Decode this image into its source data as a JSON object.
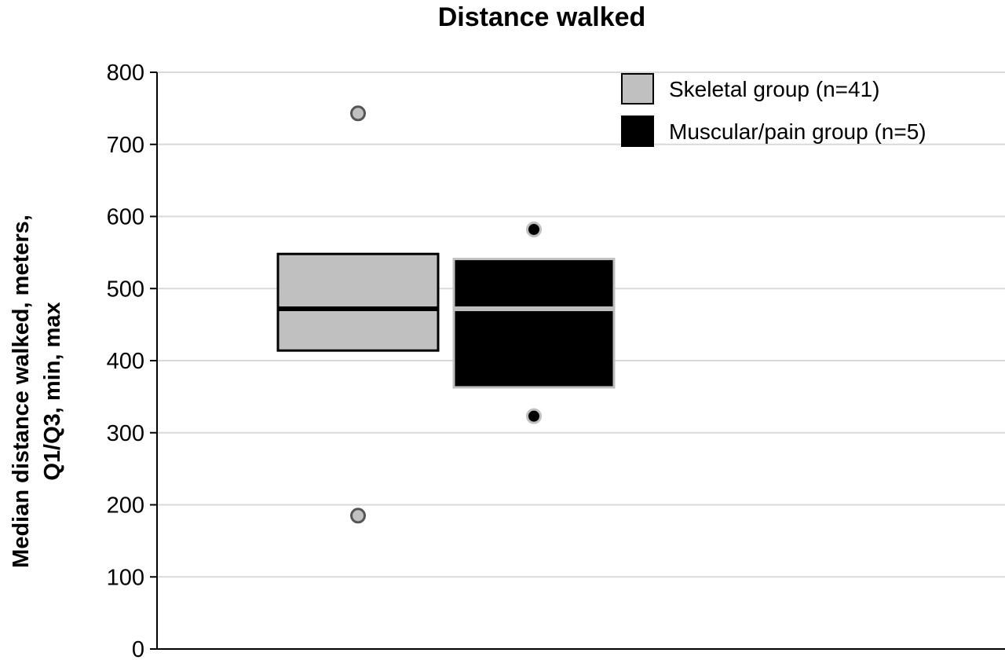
{
  "chart_data": {
    "type": "box",
    "title": "Distance walked",
    "ylabel_lines": [
      "Median distance walked, meters,",
      "Q1/Q3, min, max"
    ],
    "xlabel": "",
    "ylim": [
      0,
      800
    ],
    "yticks": [
      0,
      100,
      200,
      300,
      400,
      500,
      600,
      700,
      800
    ],
    "grid": true,
    "legend_position": "top-right",
    "series": [
      {
        "name": "Skeletal group (n=41)",
        "fill": "#c0c0c0",
        "stroke": "#000000",
        "median_color": "#000000",
        "min": 185,
        "q1": 414,
        "median": 472,
        "q3": 548,
        "max": 743
      },
      {
        "name": "Muscular/pain group (n=5)",
        "fill": "#000000",
        "stroke": "#bfbfbf",
        "median_color": "#bfbfbf",
        "min": 323,
        "q1": 363,
        "median": 472,
        "q3": 541,
        "max": 582
      }
    ]
  }
}
